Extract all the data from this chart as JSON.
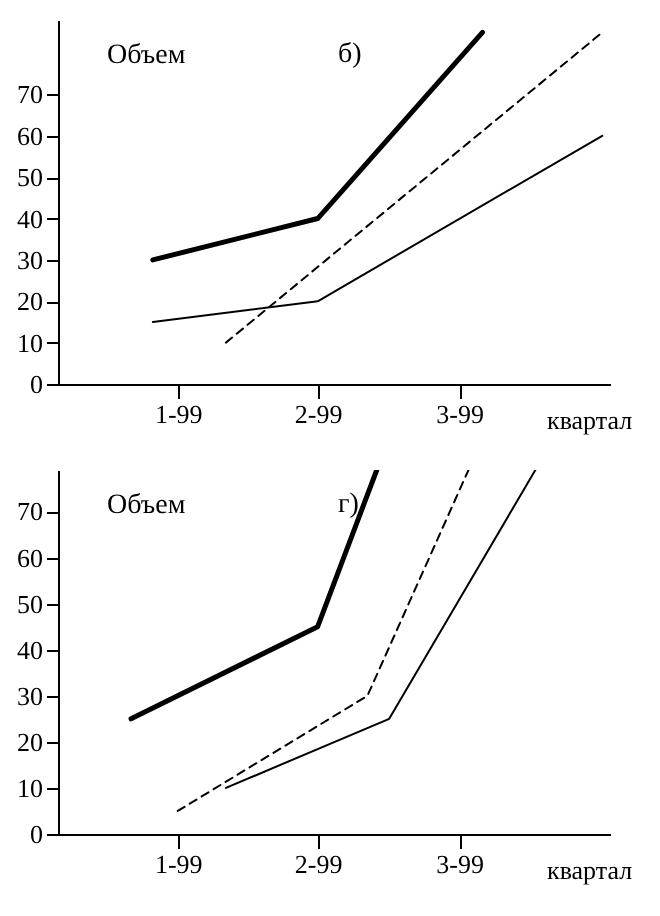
{
  "chart_data": [
    {
      "type": "line",
      "title": "б)",
      "ylabel": "Объем",
      "xlabel": "квартал",
      "xlim": [
        "1998-10-16",
        "1999-10-06"
      ],
      "ylim": [
        0,
        88
      ],
      "xticks": [
        {
          "value": "1999-01-01",
          "label": "1-99"
        },
        {
          "value": "1999-04-01",
          "label": "2-99"
        },
        {
          "value": "1999-07-01",
          "label": "3-99"
        }
      ],
      "yticks": [
        0,
        10,
        20,
        30,
        40,
        50,
        60,
        70
      ],
      "grid": false,
      "series": [
        {
          "color": "#000000",
          "line_style": "solid",
          "x": [
            "1998-12-16",
            "1999-04-01",
            "1999-07-16"
          ],
          "values": [
            30,
            40,
            85
          ]
        },
        {
          "color": "#000000",
          "line_style": "dashed",
          "x": [
            "1999-02-01",
            "1999-10-01"
          ],
          "values": [
            10,
            85
          ]
        },
        {
          "color": "#000000",
          "line_style": "solid",
          "x": [
            "1998-12-16",
            "1999-04-01",
            "1999-10-01"
          ],
          "values": [
            15,
            20,
            60
          ]
        }
      ]
    },
    {
      "type": "line",
      "title": "г)",
      "ylabel": "Объем",
      "xlabel": "квартал",
      "xlim": [
        "1998-10-16",
        "1999-10-06"
      ],
      "ylim": [
        0,
        79
      ],
      "xticks": [
        {
          "value": "1999-01-01",
          "label": "1-99"
        },
        {
          "value": "1999-04-01",
          "label": "2-99"
        },
        {
          "value": "1999-07-01",
          "label": "3-99"
        }
      ],
      "yticks": [
        0,
        10,
        20,
        30,
        40,
        50,
        60,
        70
      ],
      "grid": false,
      "series": [
        {
          "color": "#000000",
          "line_style": "solid",
          "x": [
            "1998-12-02",
            "1999-04-01",
            "1999-05-09"
          ],
          "values": [
            25,
            45,
            79
          ]
        },
        {
          "color": "#000000",
          "line_style": "dashed",
          "x": [
            "1999-01-01",
            "1999-05-03",
            "1999-07-07"
          ],
          "values": [
            5,
            30,
            79
          ]
        },
        {
          "color": "#000000",
          "line_style": "solid",
          "x": [
            "1999-02-01",
            "1999-05-17",
            "1999-08-19"
          ],
          "values": [
            10,
            25,
            79
          ]
        }
      ]
    }
  ]
}
